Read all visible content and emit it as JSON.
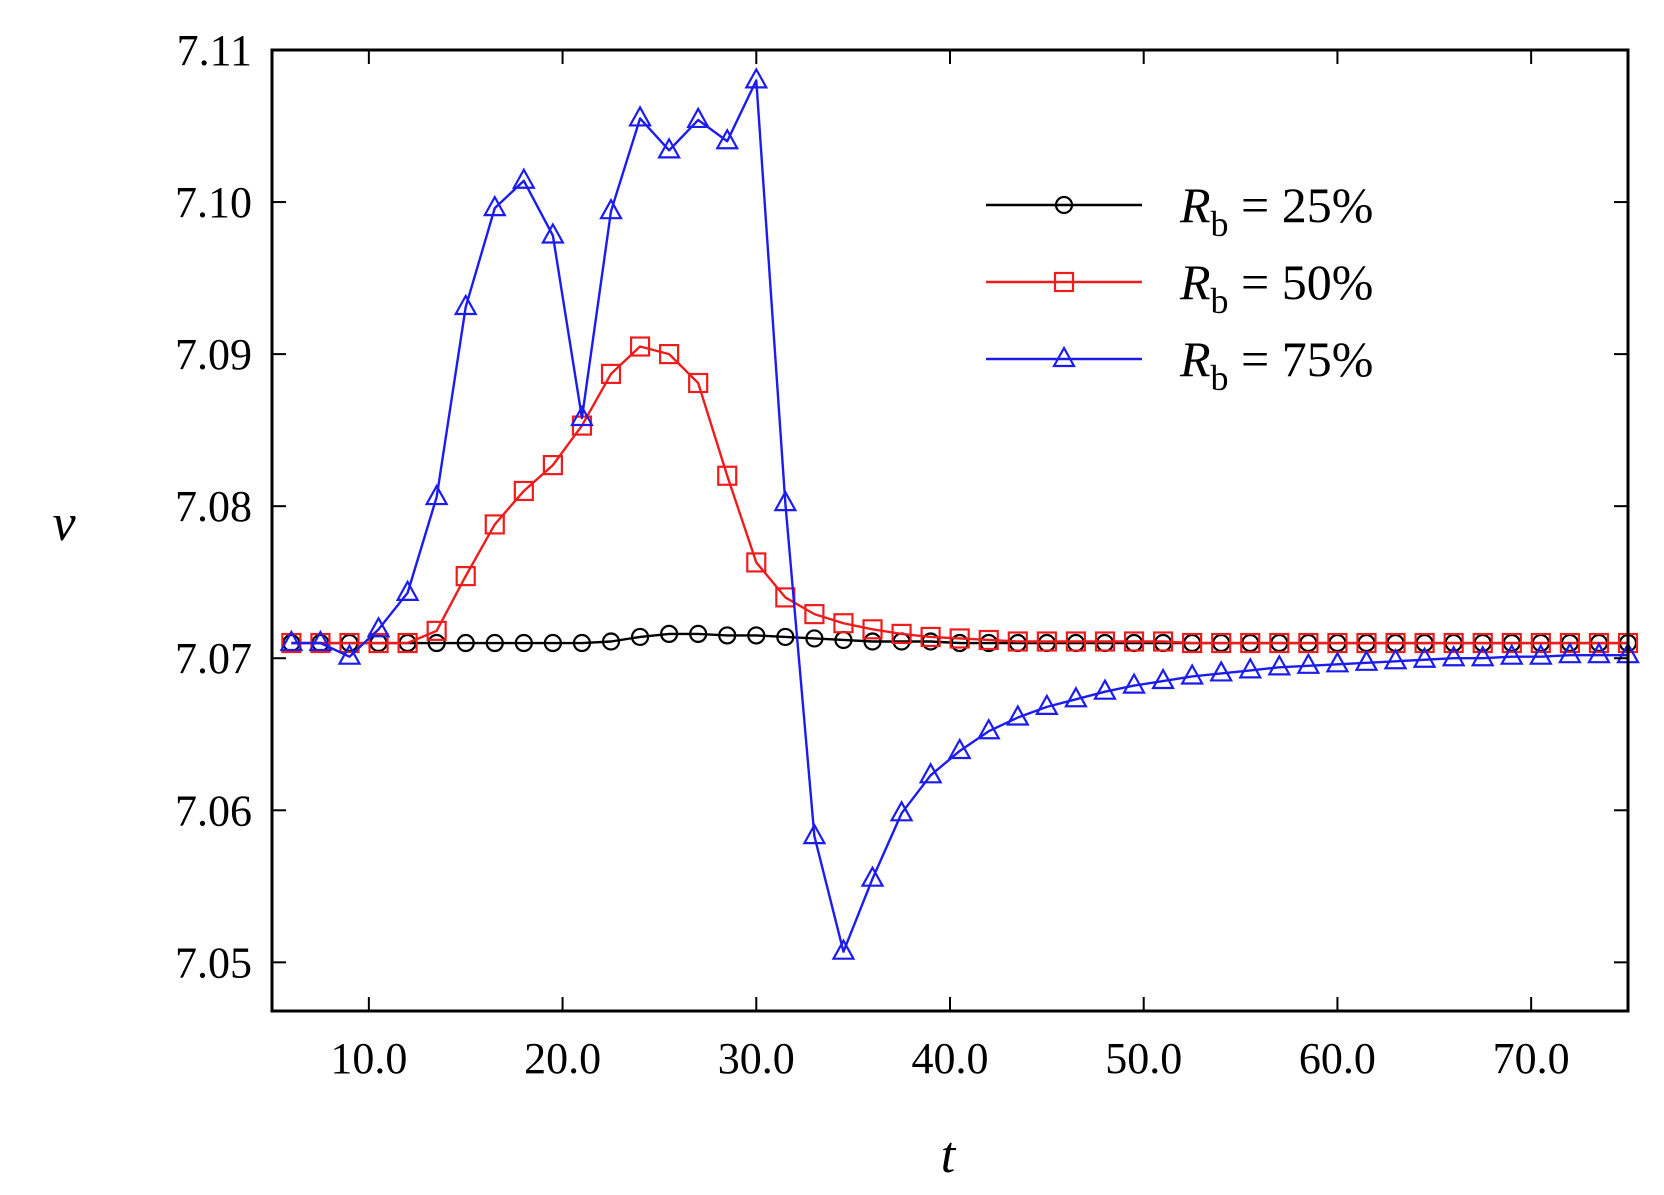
{
  "chart_data": {
    "type": "line",
    "title": "",
    "xlabel": "t",
    "ylabel": "v",
    "xlim": [
      5.0,
      75.0
    ],
    "ylim": [
      7.0468,
      7.11
    ],
    "xticks": [
      10.0,
      20.0,
      30.0,
      40.0,
      50.0,
      60.0,
      70.0
    ],
    "xtick_labels": [
      "10.0",
      "20.0",
      "30.0",
      "40.0",
      "50.0",
      "60.0",
      "70.0"
    ],
    "yticks": [
      7.05,
      7.06,
      7.07,
      7.08,
      7.09,
      7.1,
      7.11
    ],
    "ytick_labels": [
      "7.05",
      "7.06",
      "7.07",
      "7.08",
      "7.09",
      "7.10",
      "7.11"
    ],
    "grid": false,
    "legend_position": "top-right",
    "series": [
      {
        "name": "R_b = 25%",
        "legend_var": "R",
        "legend_sub": "b",
        "legend_rest": " = 25%",
        "color": "#000000",
        "marker": "circle",
        "x": [
          6,
          7.5,
          9,
          10.5,
          12,
          13.5,
          15,
          16.5,
          18,
          19.5,
          21,
          22.5,
          24,
          25.5,
          27,
          28.5,
          30,
          31.5,
          33,
          34.5,
          36,
          37.5,
          39,
          40.5,
          42,
          43.5,
          45,
          46.5,
          48,
          49.5,
          51,
          52.5,
          54,
          55.5,
          57,
          58.5,
          60,
          61.5,
          63,
          64.5,
          66,
          67.5,
          69,
          70.5,
          72,
          73.5,
          75
        ],
        "values": [
          7.071,
          7.071,
          7.071,
          7.071,
          7.071,
          7.071,
          7.071,
          7.071,
          7.071,
          7.071,
          7.071,
          7.0711,
          7.0714,
          7.0716,
          7.0716,
          7.0715,
          7.0715,
          7.0714,
          7.0713,
          7.0712,
          7.0711,
          7.0711,
          7.0711,
          7.071,
          7.071,
          7.071,
          7.071,
          7.071,
          7.071,
          7.071,
          7.071,
          7.071,
          7.071,
          7.071,
          7.071,
          7.071,
          7.071,
          7.071,
          7.071,
          7.071,
          7.071,
          7.071,
          7.071,
          7.071,
          7.071,
          7.071,
          7.071
        ]
      },
      {
        "name": "R_b = 50%",
        "legend_var": "R",
        "legend_sub": "b",
        "legend_rest": " = 50%",
        "color": "#ee1c1c",
        "marker": "square",
        "x": [
          6,
          7.5,
          9,
          10.5,
          12,
          13.5,
          15,
          16.5,
          18,
          19.5,
          21,
          22.5,
          24,
          25.5,
          27,
          28.5,
          30,
          31.5,
          33,
          34.5,
          36,
          37.5,
          39,
          40.5,
          42,
          43.5,
          45,
          46.5,
          48,
          49.5,
          51,
          52.5,
          54,
          55.5,
          57,
          58.5,
          60,
          61.5,
          63,
          64.5,
          66,
          67.5,
          69,
          70.5,
          72,
          73.5,
          75
        ],
        "values": [
          7.071,
          7.071,
          7.071,
          7.071,
          7.071,
          7.0718,
          7.0754,
          7.0788,
          7.081,
          7.0827,
          7.0853,
          7.0887,
          7.0905,
          7.09,
          7.0881,
          7.082,
          7.0763,
          7.074,
          7.0729,
          7.0723,
          7.0719,
          7.0716,
          7.0714,
          7.0713,
          7.0712,
          7.0711,
          7.0711,
          7.0711,
          7.0711,
          7.0711,
          7.0711,
          7.071,
          7.071,
          7.071,
          7.071,
          7.071,
          7.071,
          7.071,
          7.071,
          7.071,
          7.071,
          7.071,
          7.071,
          7.071,
          7.071,
          7.071,
          7.071
        ]
      },
      {
        "name": "R_b = 75%",
        "legend_var": "R",
        "legend_sub": "b",
        "legend_rest": " = 75%",
        "color": "#1c1cee",
        "marker": "triangle",
        "x": [
          6,
          7.5,
          9,
          10.5,
          12,
          13.5,
          15,
          16.5,
          18,
          19.5,
          21,
          22.5,
          24,
          25.5,
          27,
          28.5,
          30,
          31.5,
          33,
          34.5,
          36,
          37.5,
          39,
          40.5,
          42,
          43.5,
          45,
          46.5,
          48,
          49.5,
          51,
          52.5,
          54,
          55.5,
          57,
          58.5,
          60,
          61.5,
          63,
          64.5,
          66,
          67.5,
          69,
          70.5,
          72,
          73.5,
          75
        ],
        "values": [
          7.071,
          7.071,
          7.0701,
          7.0719,
          7.0743,
          7.0806,
          7.0931,
          7.0996,
          7.1014,
          7.0978,
          7.0858,
          7.0994,
          7.1055,
          7.1034,
          7.1054,
          7.104,
          7.108,
          7.0802,
          7.0583,
          7.0507,
          7.0555,
          7.0598,
          7.0623,
          7.0639,
          7.0652,
          7.0661,
          7.0668,
          7.0673,
          7.0678,
          7.0682,
          7.0685,
          7.0688,
          7.069,
          7.0692,
          7.0694,
          7.0695,
          7.0696,
          7.0697,
          7.0698,
          7.0699,
          7.07,
          7.07,
          7.0701,
          7.0701,
          7.0702,
          7.0702,
          7.0702
        ]
      }
    ]
  }
}
